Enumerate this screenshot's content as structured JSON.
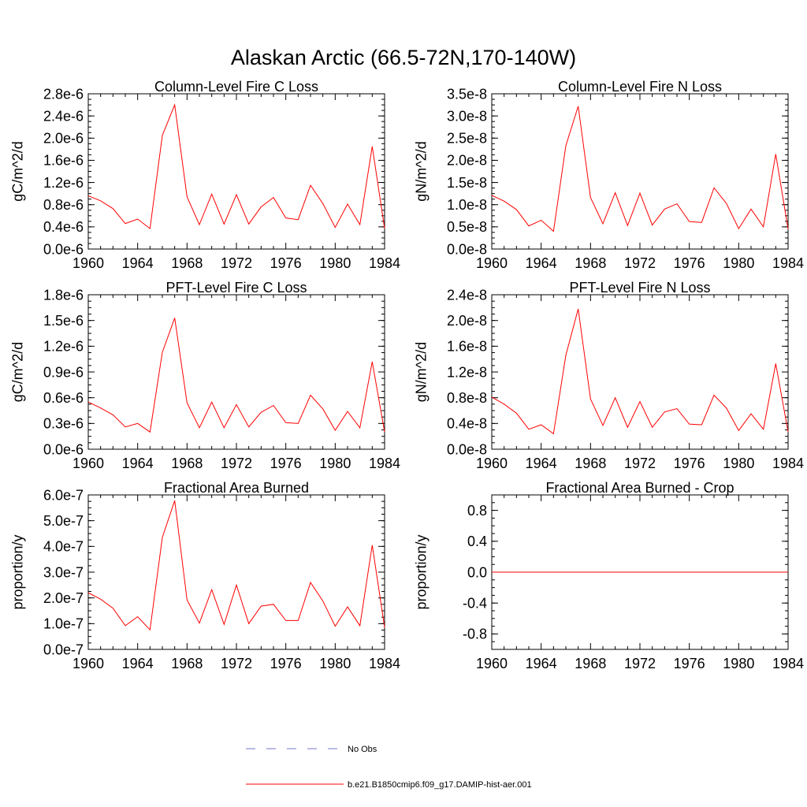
{
  "figure_title": "Alaskan Arctic (66.5-72N,170-140W)",
  "colors": {
    "model": "#ff0000",
    "obs": "#7777cc",
    "axis": "#000000"
  },
  "legend": {
    "obs_label": "No Obs",
    "model_label": "b.e21.B1850cmip6.f09_g17.DAMIP-hist-aer.001"
  },
  "chart_data": [
    {
      "type": "line",
      "title": "Column-Level Fire C Loss",
      "ylabel": "gC/m^2/d",
      "xlim": [
        1960,
        1984
      ],
      "ylim": [
        0,
        2.8e-06
      ],
      "xticks": [
        1960,
        1964,
        1968,
        1972,
        1976,
        1980,
        1984
      ],
      "yticks": [
        0,
        4e-07,
        8e-07,
        1.2e-06,
        1.6e-06,
        2e-06,
        2.4e-06,
        2.8e-06
      ],
      "ytick_labels": [
        "0.0e-6",
        "0.4e-6",
        "0.8e-6",
        "1.2e-6",
        "1.6e-6",
        "2.0e-6",
        "2.4e-6",
        "2.8e-6"
      ],
      "x": [
        1960,
        1961,
        1962,
        1963,
        1964,
        1965,
        1966,
        1967,
        1968,
        1969,
        1970,
        1971,
        1972,
        1973,
        1974,
        1975,
        1976,
        1977,
        1978,
        1979,
        1980,
        1981,
        1982,
        1983,
        1984
      ],
      "series": [
        {
          "name": "b.e21.B1850cmip6.f09_g17.DAMIP-hist-aer.001",
          "values": [
            9.6e-07,
            8.7e-07,
            7.3e-07,
            4.6e-07,
            5.4e-07,
            3.7e-07,
            2.05e-06,
            2.6e-06,
            9.4e-07,
            4.4e-07,
            9.9e-07,
            4.5e-07,
            9.8e-07,
            4.5e-07,
            7.6e-07,
            9.3e-07,
            5.6e-07,
            5.3e-07,
            1.15e-06,
            8.2e-07,
            3.9e-07,
            8.1e-07,
            4.4e-07,
            1.85e-06,
            3.7e-07
          ]
        }
      ]
    },
    {
      "type": "line",
      "title": "Column-Level Fire N Loss",
      "ylabel": "gN/m^2/d",
      "xlim": [
        1960,
        1984
      ],
      "ylim": [
        0,
        3.5e-08
      ],
      "xticks": [
        1960,
        1964,
        1968,
        1972,
        1976,
        1980,
        1984
      ],
      "yticks": [
        0,
        5e-09,
        1e-08,
        1.5e-08,
        2e-08,
        2.5e-08,
        3e-08,
        3.5e-08
      ],
      "ytick_labels": [
        "0.0e-8",
        "0.5e-8",
        "1.0e-8",
        "1.5e-8",
        "2.0e-8",
        "2.5e-8",
        "3.0e-8",
        "3.5e-8"
      ],
      "x": [
        1960,
        1961,
        1962,
        1963,
        1964,
        1965,
        1966,
        1967,
        1968,
        1969,
        1970,
        1971,
        1972,
        1973,
        1974,
        1975,
        1976,
        1977,
        1978,
        1979,
        1980,
        1981,
        1982,
        1983,
        1984
      ],
      "series": [
        {
          "name": "b.e21.B1850cmip6.f09_g17.DAMIP-hist-aer.001",
          "values": [
            1.21e-08,
            1.08e-08,
            8.9e-09,
            5.2e-09,
            6.5e-09,
            4e-09,
            2.33e-08,
            3.22e-08,
            1.16e-08,
            5.7e-09,
            1.27e-08,
            5.3e-09,
            1.26e-08,
            5.4e-09,
            9e-09,
            1.02e-08,
            6.2e-09,
            6e-09,
            1.38e-08,
            1.03e-08,
            4.6e-09,
            9e-09,
            5e-09,
            2.14e-08,
            4.5e-09
          ]
        }
      ]
    },
    {
      "type": "line",
      "title": "PFT-Level Fire C Loss",
      "ylabel": "gC/m^2/d",
      "xlim": [
        1960,
        1984
      ],
      "ylim": [
        0,
        1.8e-06
      ],
      "xticks": [
        1960,
        1964,
        1968,
        1972,
        1976,
        1980,
        1984
      ],
      "yticks": [
        0,
        3e-07,
        6e-07,
        9e-07,
        1.2e-06,
        1.5e-06,
        1.8e-06
      ],
      "ytick_labels": [
        "0.0e-6",
        "0.3e-6",
        "0.6e-6",
        "0.9e-6",
        "1.2e-6",
        "1.5e-6",
        "1.8e-6"
      ],
      "x": [
        1960,
        1961,
        1962,
        1963,
        1964,
        1965,
        1966,
        1967,
        1968,
        1969,
        1970,
        1971,
        1972,
        1973,
        1974,
        1975,
        1976,
        1977,
        1978,
        1979,
        1980,
        1981,
        1982,
        1983,
        1984
      ],
      "series": [
        {
          "name": "b.e21.B1850cmip6.f09_g17.DAMIP-hist-aer.001",
          "values": [
            5.5e-07,
            4.8e-07,
            4e-07,
            2.6e-07,
            3e-07,
            2e-07,
            1.13e-06,
            1.53e-06,
            5.4e-07,
            2.5e-07,
            5.5e-07,
            2.5e-07,
            5.2e-07,
            2.6e-07,
            4.3e-07,
            5.1e-07,
            3.1e-07,
            3e-07,
            6.3e-07,
            4.7e-07,
            2.2e-07,
            4.4e-07,
            2.5e-07,
            1.02e-06,
            2e-07
          ]
        }
      ]
    },
    {
      "type": "line",
      "title": "PFT-Level Fire N Loss",
      "ylabel": "gN/m^2/d",
      "xlim": [
        1960,
        1984
      ],
      "ylim": [
        0,
        2.4e-08
      ],
      "xticks": [
        1960,
        1964,
        1968,
        1972,
        1976,
        1980,
        1984
      ],
      "yticks": [
        0,
        4e-09,
        8e-09,
        1.2e-08,
        1.6e-08,
        2e-08,
        2.4e-08
      ],
      "ytick_labels": [
        "0.0e-8",
        "0.4e-8",
        "0.8e-8",
        "1.2e-8",
        "1.6e-8",
        "2.0e-8",
        "2.4e-8"
      ],
      "x": [
        1960,
        1961,
        1962,
        1963,
        1964,
        1965,
        1966,
        1967,
        1968,
        1969,
        1970,
        1971,
        1972,
        1973,
        1974,
        1975,
        1976,
        1977,
        1978,
        1979,
        1980,
        1981,
        1982,
        1983,
        1984
      ],
      "series": [
        {
          "name": "b.e21.B1850cmip6.f09_g17.DAMIP-hist-aer.001",
          "values": [
            8.1e-09,
            7e-09,
            5.6e-09,
            3.1e-09,
            3.8e-09,
            2.4e-09,
            1.46e-08,
            2.18e-08,
            7.8e-09,
            3.7e-09,
            8e-09,
            3.4e-09,
            7.4e-09,
            3.4e-09,
            5.8e-09,
            6.3e-09,
            3.9e-09,
            3.8e-09,
            8.4e-09,
            6.4e-09,
            2.9e-09,
            5.5e-09,
            3.1e-09,
            1.33e-08,
            2.7e-09
          ]
        }
      ]
    },
    {
      "type": "line",
      "title": "Fractional Area Burned",
      "ylabel": "proportion/y",
      "xlim": [
        1960,
        1984
      ],
      "ylim": [
        0,
        6e-07
      ],
      "xticks": [
        1960,
        1964,
        1968,
        1972,
        1976,
        1980,
        1984
      ],
      "yticks": [
        0,
        1e-07,
        2e-07,
        3e-07,
        4e-07,
        5e-07,
        6e-07
      ],
      "ytick_labels": [
        "0.0e-7",
        "1.0e-7",
        "2.0e-7",
        "3.0e-7",
        "4.0e-7",
        "5.0e-7",
        "6.0e-7"
      ],
      "x": [
        1960,
        1961,
        1962,
        1963,
        1964,
        1965,
        1966,
        1967,
        1968,
        1969,
        1970,
        1971,
        1972,
        1973,
        1974,
        1975,
        1976,
        1977,
        1978,
        1979,
        1980,
        1981,
        1982,
        1983,
        1984
      ],
      "series": [
        {
          "name": "b.e21.B1850cmip6.f09_g17.DAMIP-hist-aer.001",
          "values": [
            2.2e-07,
            1.95e-07,
            1.6e-07,
            9.2e-08,
            1.27e-07,
            7.6e-08,
            4.35e-07,
            5.78e-07,
            1.92e-07,
            1.02e-07,
            2.32e-07,
            9.7e-08,
            2.5e-07,
            1e-07,
            1.68e-07,
            1.75e-07,
            1.12e-07,
            1.12e-07,
            2.6e-07,
            1.88e-07,
            9e-08,
            1.65e-07,
            9.2e-08,
            4.05e-07,
            8.5e-08
          ]
        }
      ]
    },
    {
      "type": "line",
      "title": "Fractional Area Burned - Crop",
      "ylabel": "proportion/y",
      "xlim": [
        1960,
        1984
      ],
      "ylim": [
        -1.0,
        1.0
      ],
      "xticks": [
        1960,
        1964,
        1968,
        1972,
        1976,
        1980,
        1984
      ],
      "yticks": [
        -0.8,
        -0.4,
        0.0,
        0.4,
        0.8
      ],
      "ytick_labels": [
        "-0.8",
        "-0.4",
        "0.0",
        "0.4",
        "0.8"
      ],
      "x": [
        1960,
        1961,
        1962,
        1963,
        1964,
        1965,
        1966,
        1967,
        1968,
        1969,
        1970,
        1971,
        1972,
        1973,
        1974,
        1975,
        1976,
        1977,
        1978,
        1979,
        1980,
        1981,
        1982,
        1983,
        1984
      ],
      "series": [
        {
          "name": "b.e21.B1850cmip6.f09_g17.DAMIP-hist-aer.001",
          "values": [
            0,
            0,
            0,
            0,
            0,
            0,
            0,
            0,
            0,
            0,
            0,
            0,
            0,
            0,
            0,
            0,
            0,
            0,
            0,
            0,
            0,
            0,
            0,
            0,
            0
          ]
        }
      ]
    }
  ]
}
